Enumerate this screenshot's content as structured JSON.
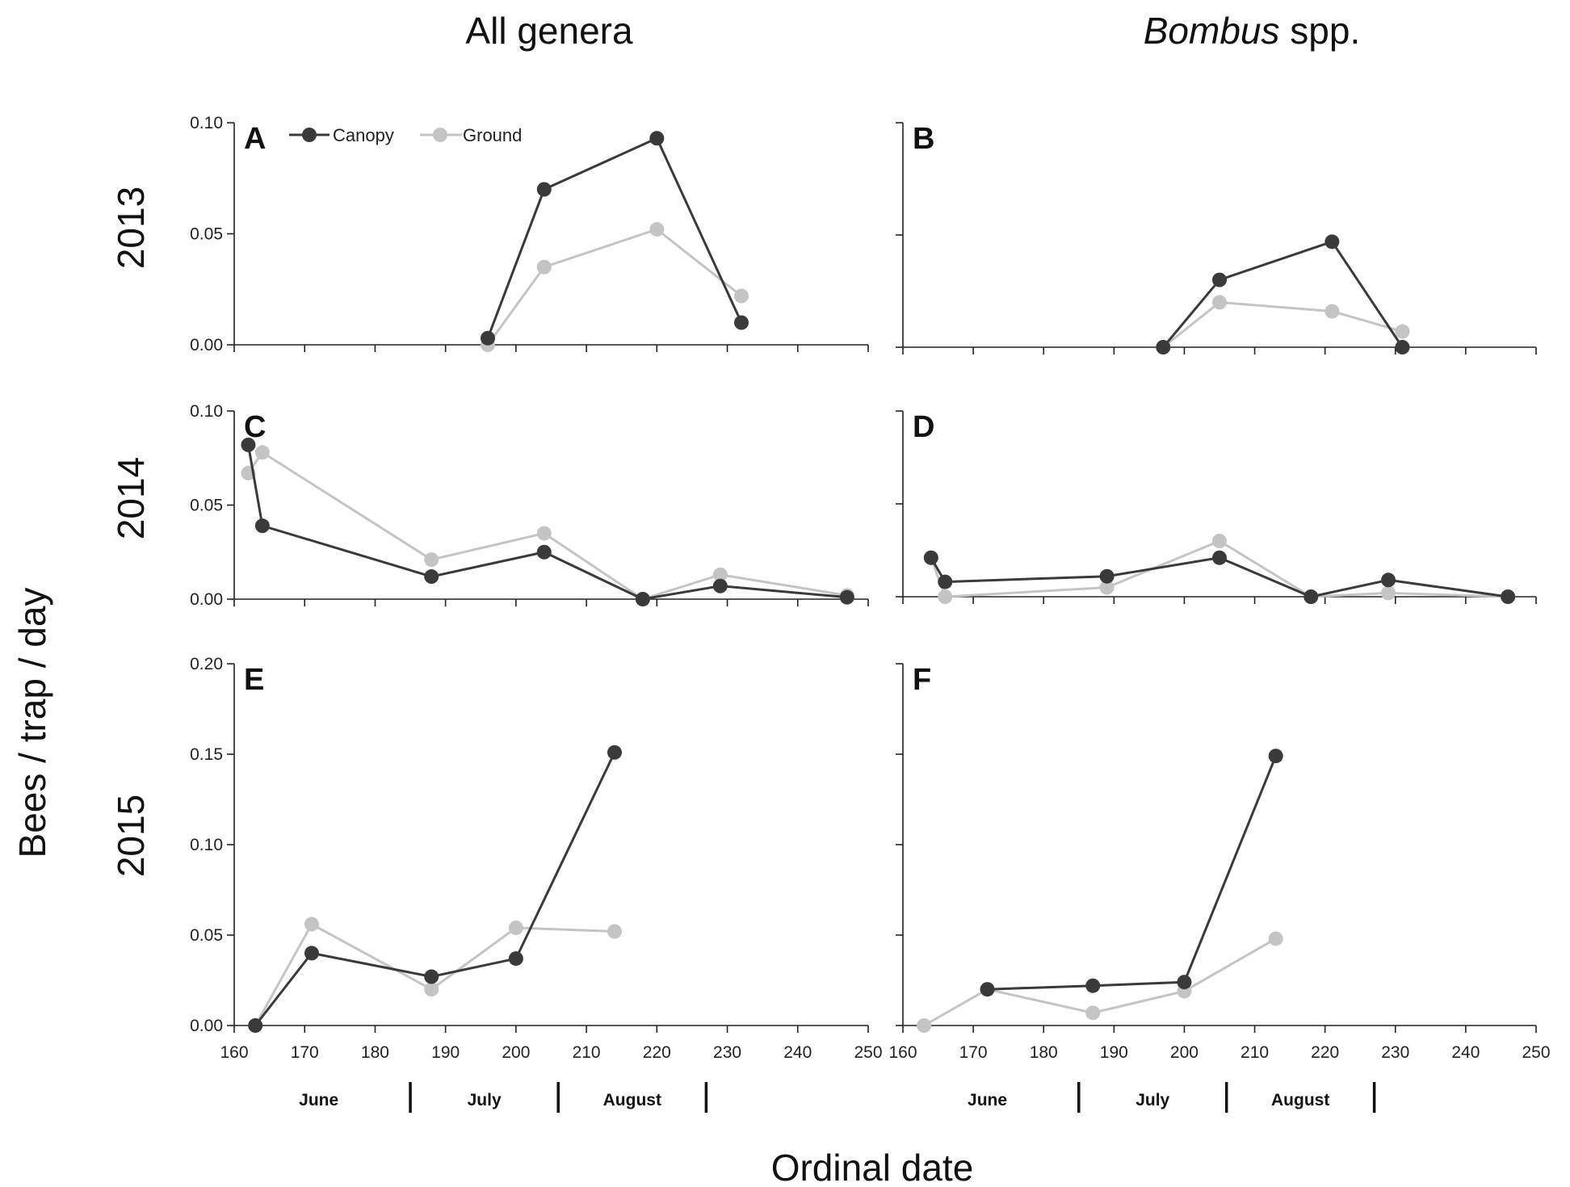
{
  "columns": [
    {
      "title": "All genera",
      "italic_part": "",
      "rest": ""
    },
    {
      "title": "",
      "italic_part": "Bombus",
      "rest": " spp."
    }
  ],
  "rows": [
    "2013",
    "2014",
    "2015"
  ],
  "ylabel": "Bees / trap / day",
  "xlabel": "Ordinal date",
  "months": [
    "June",
    "July",
    "August"
  ],
  "legend": {
    "canopy": "Canopy",
    "ground": "Ground"
  },
  "colors": {
    "canopy": "#3a3a3a",
    "ground": "#c4c4c4"
  },
  "x_ticks": [
    160,
    170,
    180,
    190,
    200,
    210,
    220,
    230,
    240,
    250
  ],
  "month_boundaries": [
    185,
    206,
    227
  ],
  "chart_data": [
    {
      "type": "line",
      "panel": "A",
      "xlim": [
        160,
        250
      ],
      "ylim": [
        0,
        0.1
      ],
      "y_ticks": [
        "0.00",
        "0.05",
        "0.10"
      ],
      "show_y_tick_labels": true,
      "show_x_axis": false,
      "series": [
        {
          "name": "Canopy",
          "x": [
            196,
            204,
            220,
            232
          ],
          "y": [
            0.003,
            0.07,
            0.093,
            0.01
          ]
        },
        {
          "name": "Ground",
          "x": [
            196,
            204,
            220,
            232
          ],
          "y": [
            0.0,
            0.035,
            0.052,
            0.022
          ]
        }
      ]
    },
    {
      "type": "line",
      "panel": "B",
      "xlim": [
        160,
        250
      ],
      "ylim": [
        0,
        0.1
      ],
      "y_ticks": [
        "0.00",
        "0.05",
        "0.10"
      ],
      "show_y_tick_labels": false,
      "show_x_axis": false,
      "series": [
        {
          "name": "Canopy",
          "x": [
            197,
            205,
            221,
            231
          ],
          "y": [
            0.0,
            0.03,
            0.047,
            0.0
          ]
        },
        {
          "name": "Ground",
          "x": [
            197,
            205,
            221,
            231
          ],
          "y": [
            0.0,
            0.02,
            0.016,
            0.007
          ]
        }
      ]
    },
    {
      "type": "line",
      "panel": "C",
      "xlim": [
        160,
        250
      ],
      "ylim": [
        0,
        0.1
      ],
      "y_ticks": [
        "0.00",
        "0.05",
        "0.10"
      ],
      "show_y_tick_labels": true,
      "show_x_axis": false,
      "series": [
        {
          "name": "Canopy",
          "x": [
            162,
            164,
            188,
            204,
            218,
            229,
            247
          ],
          "y": [
            0.082,
            0.039,
            0.012,
            0.025,
            0.0,
            0.007,
            0.001
          ]
        },
        {
          "name": "Ground",
          "x": [
            162,
            164,
            188,
            204,
            218,
            229,
            247
          ],
          "y": [
            0.067,
            0.078,
            0.021,
            0.035,
            0.0,
            0.013,
            0.002
          ]
        }
      ]
    },
    {
      "type": "line",
      "panel": "D",
      "xlim": [
        160,
        250
      ],
      "ylim": [
        0,
        0.1
      ],
      "y_ticks": [
        "0.00",
        "0.05",
        "0.10"
      ],
      "show_y_tick_labels": false,
      "show_x_axis": false,
      "series": [
        {
          "name": "Canopy",
          "x": [
            164,
            166,
            189,
            205,
            218,
            229,
            246
          ],
          "y": [
            0.021,
            0.008,
            0.011,
            0.021,
            0.0,
            0.009,
            0.0
          ]
        },
        {
          "name": "Ground",
          "x": [
            164,
            166,
            189,
            205,
            218,
            229,
            246
          ],
          "y": [
            0.021,
            0.0,
            0.005,
            0.03,
            0.0,
            0.002,
            0.0
          ]
        }
      ]
    },
    {
      "type": "line",
      "panel": "E",
      "xlim": [
        160,
        250
      ],
      "ylim": [
        0,
        0.2
      ],
      "y_ticks": [
        "0.00",
        "0.05",
        "0.10",
        "0.15",
        "0.20"
      ],
      "show_y_tick_labels": true,
      "show_x_axis": true,
      "series": [
        {
          "name": "Canopy",
          "x": [
            163,
            171,
            188,
            200,
            214
          ],
          "y": [
            0.0,
            0.04,
            0.027,
            0.037,
            0.151
          ]
        },
        {
          "name": "Ground",
          "x": [
            163,
            171,
            188,
            200,
            214
          ],
          "y": [
            0.0,
            0.056,
            0.02,
            0.054,
            0.052
          ]
        }
      ]
    },
    {
      "type": "line",
      "panel": "F",
      "xlim": [
        160,
        250
      ],
      "ylim": [
        0,
        0.2
      ],
      "y_ticks": [
        "0.00",
        "0.05",
        "0.10",
        "0.15",
        "0.20"
      ],
      "show_y_tick_labels": false,
      "show_x_axis": true,
      "series": [
        {
          "name": "Canopy",
          "x": [
            172,
            187,
            200,
            213
          ],
          "y": [
            0.02,
            0.022,
            0.024,
            0.149
          ]
        },
        {
          "name": "Ground",
          "x": [
            163,
            172,
            187,
            200,
            213
          ],
          "y": [
            0.0,
            0.02,
            0.007,
            0.019,
            0.048
          ]
        }
      ]
    }
  ]
}
